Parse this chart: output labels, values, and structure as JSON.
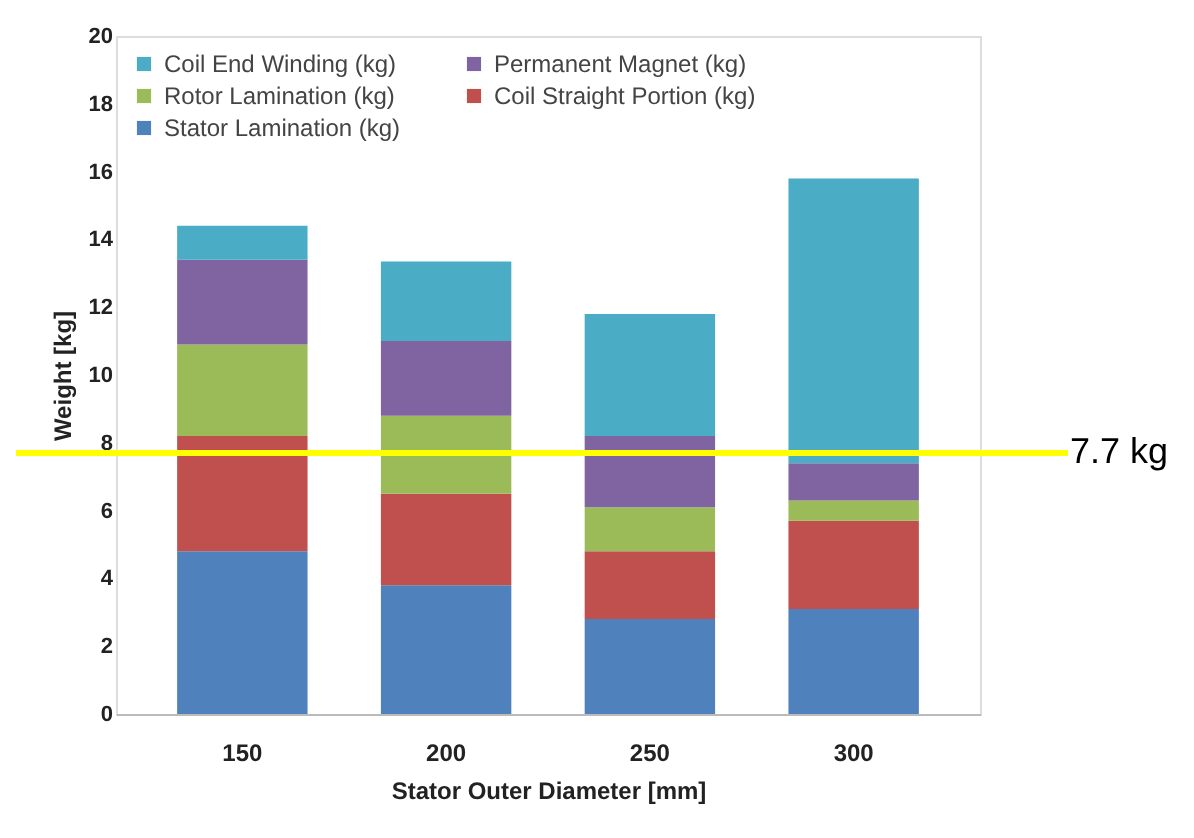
{
  "chart_data": {
    "type": "bar",
    "stacked": true,
    "xlabel": "Stator Outer Diameter [mm]",
    "ylabel": "Weight [kg]",
    "categories": [
      "150",
      "200",
      "250",
      "300"
    ],
    "series": [
      {
        "name": "Stator Lamination (kg)",
        "color": "#4f81bd",
        "values": [
          4.8,
          3.8,
          2.8,
          3.1
        ]
      },
      {
        "name": "Coil Straight Portion (kg)",
        "color": "#c0504d",
        "values": [
          3.4,
          2.7,
          2.0,
          2.6
        ]
      },
      {
        "name": "Rotor Lamination (kg)",
        "color": "#9bbb59",
        "values": [
          2.7,
          2.3,
          1.3,
          0.6
        ]
      },
      {
        "name": "Permanent Magnet (kg)",
        "color": "#8064a2",
        "values": [
          2.5,
          2.2,
          2.1,
          1.1
        ]
      },
      {
        "name": "Coil End Winding (kg)",
        "color": "#4bacc6",
        "values": [
          1.0,
          2.35,
          3.6,
          8.4
        ]
      }
    ],
    "ylim": [
      0,
      20
    ],
    "yticks": [
      0,
      2,
      4,
      6,
      8,
      10,
      12,
      14,
      16,
      18,
      20
    ],
    "grid": false,
    "legend": "top",
    "ref_lines": [
      {
        "axis": "y",
        "value": 7.7,
        "label": "7.7 kg",
        "color": "#ffff00"
      }
    ]
  }
}
